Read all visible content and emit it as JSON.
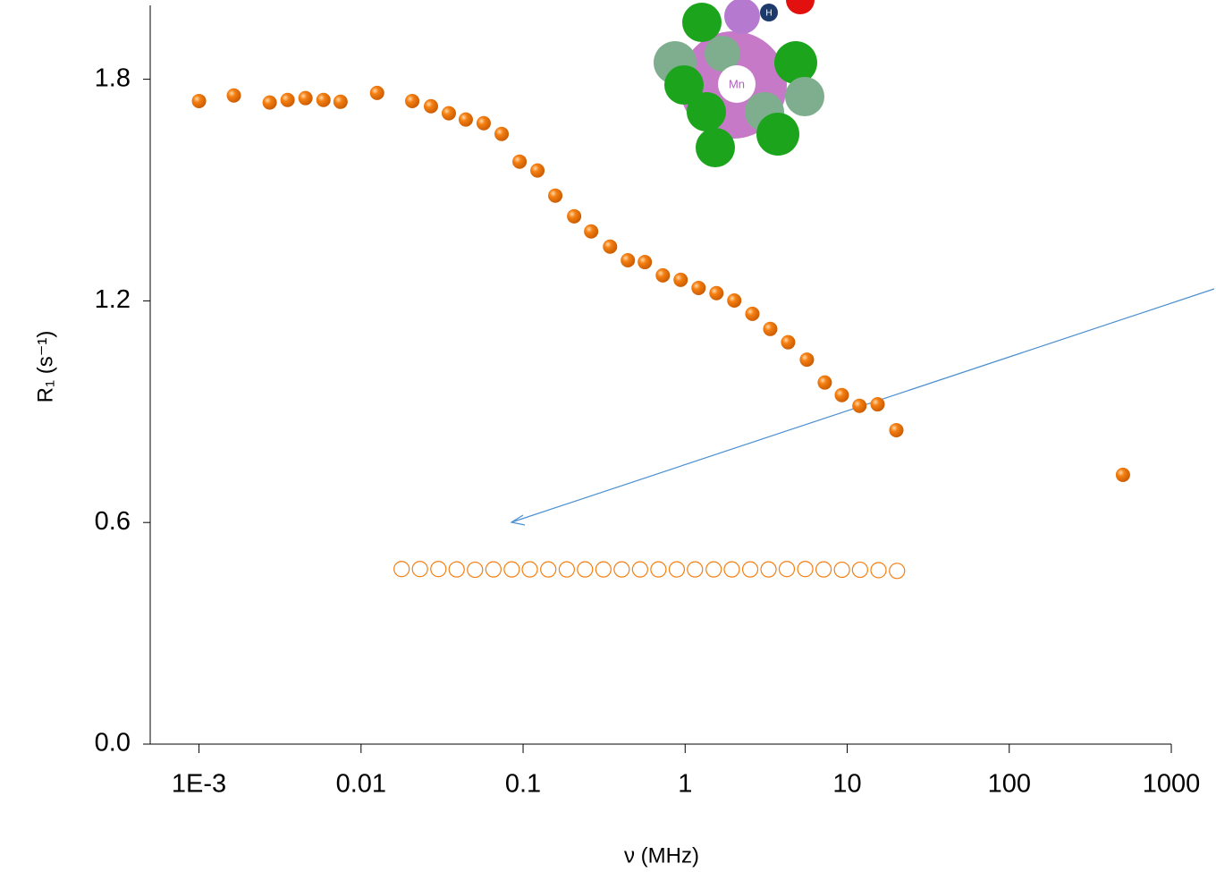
{
  "chart_data": {
    "type": "scatter",
    "x_label": "ν (MHz)",
    "y_label": "R₁ (s⁻¹)",
    "annotations": [
      "Mn",
      "H"
    ],
    "xscale": "log",
    "xlim": [
      0.0005,
      1000
    ],
    "xticks": [
      {
        "value": 0.001,
        "label": "1E-3"
      },
      0.01,
      0.1,
      1,
      10,
      100,
      1000
    ],
    "ylim": [
      0,
      2
    ],
    "yticks": [
      {
        "value": 0,
        "label": "0.0"
      },
      0.6,
      1.2,
      1.8
    ],
    "grid": false,
    "series": [
      {
        "color": "#f57f12",
        "filled": true,
        "x": [
          0.001,
          0.00164,
          0.00273,
          0.00352,
          0.00454,
          0.00586,
          0.00747,
          0.01256,
          0.0207,
          0.027,
          0.0348,
          0.0443,
          0.0571,
          0.0737,
          0.0951,
          0.1226,
          0.158,
          0.2065,
          0.263,
          0.344,
          0.443,
          0.564,
          0.728,
          0.938,
          1.21,
          1.56,
          2.01,
          2.6,
          3.35,
          4.32,
          5.64,
          7.27,
          9.26,
          11.9,
          15.4,
          20.1,
          503
        ],
        "values": [
          1.741,
          1.756,
          1.737,
          1.744,
          1.749,
          1.744,
          1.739,
          1.763,
          1.741,
          1.727,
          1.708,
          1.691,
          1.681,
          1.652,
          1.577,
          1.553,
          1.485,
          1.429,
          1.388,
          1.347,
          1.31,
          1.305,
          1.269,
          1.257,
          1.235,
          1.221,
          1.201,
          1.165,
          1.124,
          1.088,
          1.041,
          0.979,
          0.945,
          0.916,
          0.92,
          0.85,
          0.729
        ]
      },
      {
        "color": "#f57f12",
        "filled": false,
        "x": [
          0.0178,
          0.0231,
          0.03,
          0.0389,
          0.0505,
          0.0656,
          0.0851,
          0.11,
          0.143,
          0.186,
          0.241,
          0.313,
          0.406,
          0.527,
          0.684,
          0.888,
          1.15,
          1.5,
          1.94,
          2.52,
          3.27,
          4.24,
          5.51,
          7.15,
          9.28,
          12.0,
          15.6,
          20.3
        ],
        "values": [
          0.474,
          0.474,
          0.474,
          0.473,
          0.472,
          0.473,
          0.473,
          0.473,
          0.473,
          0.473,
          0.473,
          0.473,
          0.473,
          0.473,
          0.473,
          0.473,
          0.473,
          0.473,
          0.473,
          0.473,
          0.473,
          0.474,
          0.474,
          0.473,
          0.472,
          0.472,
          0.471,
          0.469
        ]
      }
    ]
  }
}
